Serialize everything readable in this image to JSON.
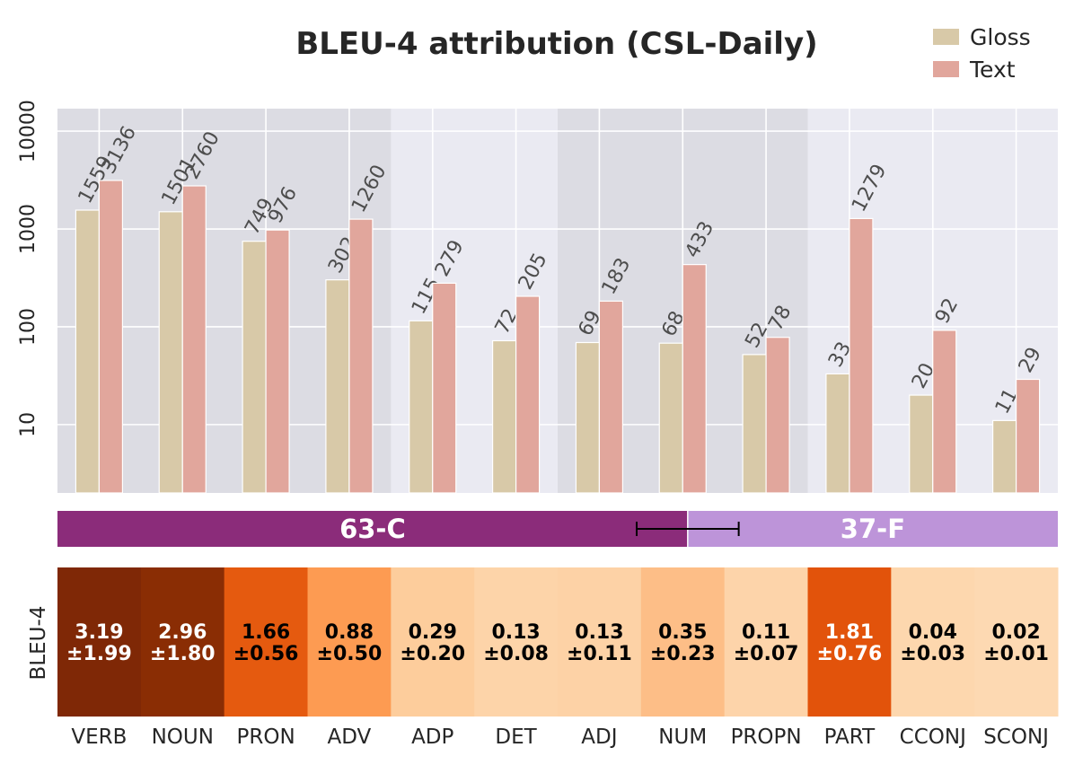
{
  "chart_data": [
    {
      "type": "bar",
      "title": "BLEU-4 attribution (CSL-Daily)",
      "scale": "log",
      "ylim": [
        2,
        17000
      ],
      "yticks": [
        10,
        100,
        1000,
        10000
      ],
      "grid": true,
      "legend_position": "top-right",
      "categories": [
        "VERB",
        "NOUN",
        "PRON",
        "ADV",
        "ADP",
        "DET",
        "ADJ",
        "NUM",
        "PROPN",
        "PART",
        "CCONJ",
        "SCONJ"
      ],
      "series": [
        {
          "name": "Gloss",
          "color": "#d8c9a8",
          "values": [
            1559,
            1501,
            749,
            302,
            115,
            72,
            69,
            68,
            52,
            33,
            20,
            11
          ]
        },
        {
          "name": "Text",
          "color": "#e1a69c",
          "values": [
            3136,
            2760,
            976,
            1260,
            279,
            205,
            183,
            433,
            78,
            1279,
            92,
            29
          ]
        }
      ],
      "shaded_groups": [
        [
          0,
          3
        ],
        [
          6,
          8
        ]
      ],
      "shade_color": "#dcdce3",
      "plot_background": "#eaeaf2"
    },
    {
      "type": "bar",
      "orientation": "horizontal-stacked",
      "segments": [
        {
          "label": "63-C",
          "value": 63,
          "color": "#8b2c7a"
        },
        {
          "label": "37-F",
          "value": 37,
          "color": "#bd94d9"
        }
      ],
      "error_range": [
        57.9,
        68.1
      ]
    },
    {
      "type": "heatmap",
      "ylabel": "BLEU-4",
      "categories": [
        "VERB",
        "NOUN",
        "PRON",
        "ADV",
        "ADP",
        "DET",
        "ADJ",
        "NUM",
        "PROPN",
        "PART",
        "CCONJ",
        "SCONJ"
      ],
      "values": [
        3.19,
        2.96,
        1.66,
        0.88,
        0.29,
        0.13,
        0.13,
        0.35,
        0.11,
        1.81,
        0.04,
        0.02
      ],
      "errors": [
        1.99,
        1.8,
        0.56,
        0.5,
        0.2,
        0.08,
        0.11,
        0.23,
        0.07,
        0.76,
        0.03,
        0.01
      ],
      "value_labels": [
        "3.19",
        "2.96",
        "1.66",
        "0.88",
        "0.29",
        "0.13",
        "0.13",
        "0.35",
        "0.11",
        "1.81",
        "0.04",
        "0.02"
      ],
      "error_labels": [
        "±1.99",
        "±1.80",
        "±0.56",
        "±0.50",
        "±0.20",
        "±0.08",
        "±0.11",
        "±0.23",
        "±0.07",
        "±0.76",
        "±0.03",
        "±0.01"
      ],
      "cell_colors": [
        "#7f2806",
        "#8a2d04",
        "#e55a0f",
        "#fd9b52",
        "#fdcd9c",
        "#fdd4a9",
        "#fdd2a6",
        "#fdbe87",
        "#fdd4aa",
        "#e2530b",
        "#fdd7ae",
        "#fdd9b2"
      ],
      "text_colors": [
        "#ffffff",
        "#ffffff",
        "#000000",
        "#000000",
        "#000000",
        "#000000",
        "#000000",
        "#000000",
        "#000000",
        "#ffffff",
        "#000000",
        "#000000"
      ]
    }
  ]
}
